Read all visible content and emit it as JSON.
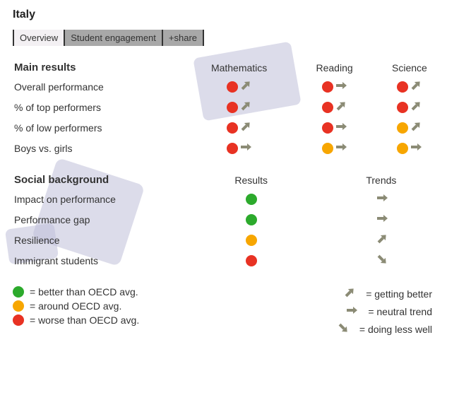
{
  "title": "Italy",
  "tabs": [
    {
      "label": "Overview",
      "active": true
    },
    {
      "label": "Student engagement",
      "active": false
    },
    {
      "label": "+share",
      "active": false
    }
  ],
  "colors": {
    "green": "#2caa2c",
    "orange": "#f7a600",
    "red": "#e83223",
    "arrow": "#8b8b75",
    "bg_shape": "#bfbfd9"
  },
  "arrows": {
    "up": {
      "rotate": -45
    },
    "neutral": {
      "rotate": 0
    },
    "down": {
      "rotate": 45
    }
  },
  "main": {
    "heading": "Main results",
    "columns": [
      "Mathematics",
      "Reading",
      "Science"
    ],
    "rows": [
      {
        "label": "Overall performance",
        "cells": [
          {
            "dot": "red",
            "arrow": "up"
          },
          {
            "dot": "red",
            "arrow": "neutral"
          },
          {
            "dot": "red",
            "arrow": "up"
          }
        ]
      },
      {
        "label": "% of top performers",
        "cells": [
          {
            "dot": "red",
            "arrow": "up"
          },
          {
            "dot": "red",
            "arrow": "up"
          },
          {
            "dot": "red",
            "arrow": "up"
          }
        ]
      },
      {
        "label": "% of low performers",
        "cells": [
          {
            "dot": "red",
            "arrow": "up"
          },
          {
            "dot": "red",
            "arrow": "neutral"
          },
          {
            "dot": "orange",
            "arrow": "up"
          }
        ]
      },
      {
        "label": "Boys vs. girls",
        "cells": [
          {
            "dot": "red",
            "arrow": "neutral"
          },
          {
            "dot": "orange",
            "arrow": "neutral"
          },
          {
            "dot": "orange",
            "arrow": "neutral"
          }
        ]
      }
    ]
  },
  "social": {
    "heading": "Social background",
    "columns": [
      "Results",
      "Trends"
    ],
    "rows": [
      {
        "label": "Impact on performance",
        "result": "green",
        "trend": "neutral"
      },
      {
        "label": "Performance gap",
        "result": "green",
        "trend": "neutral"
      },
      {
        "label": "Resilience",
        "result": "orange",
        "trend": "up"
      },
      {
        "label": "Immigrant students",
        "result": "red",
        "trend": "down"
      }
    ]
  },
  "legend": {
    "dots": [
      {
        "color": "green",
        "text": "= better than OECD avg."
      },
      {
        "color": "orange",
        "text": "= around OECD avg."
      },
      {
        "color": "red",
        "text": "= worse than OECD avg."
      }
    ],
    "arrows": [
      {
        "dir": "up",
        "text": "= getting better"
      },
      {
        "dir": "neutral",
        "text": "= neutral trend"
      },
      {
        "dir": "down",
        "text": "= doing less well"
      }
    ]
  }
}
